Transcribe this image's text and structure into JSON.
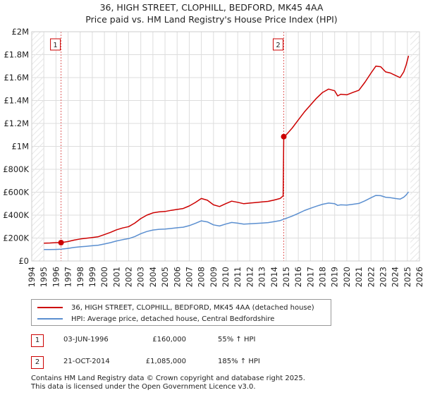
{
  "title_line1": "36, HIGH STREET, CLOPHILL, BEDFORD, MK45 4AA",
  "title_line2": "Price paid vs. HM Land Registry's House Price Index (HPI)",
  "colors": {
    "property": "#cc0000",
    "hpi": "#5b8fd0",
    "vline": "#e06060",
    "grid": "#dddddd"
  },
  "chart_data": {
    "type": "line",
    "x_range": [
      1994,
      2026
    ],
    "y_range": [
      0,
      2000000
    ],
    "y_ticks": [
      {
        "value": 0,
        "label": "£0"
      },
      {
        "value": 200000,
        "label": "£200K"
      },
      {
        "value": 400000,
        "label": "£400K"
      },
      {
        "value": 600000,
        "label": "£600K"
      },
      {
        "value": 800000,
        "label": "£800K"
      },
      {
        "value": 1000000,
        "label": "£1M"
      },
      {
        "value": 1200000,
        "label": "£1.2M"
      },
      {
        "value": 1400000,
        "label": "£1.4M"
      },
      {
        "value": 1600000,
        "label": "£1.6M"
      },
      {
        "value": 1800000,
        "label": "£1.8M"
      },
      {
        "value": 2000000,
        "label": "£2M"
      }
    ],
    "x_ticks": [
      "1994",
      "1995",
      "1996",
      "1997",
      "1998",
      "1999",
      "2000",
      "2001",
      "2002",
      "2003",
      "2004",
      "2005",
      "2006",
      "2007",
      "2008",
      "2009",
      "2010",
      "2011",
      "2012",
      "2013",
      "2014",
      "2015",
      "2016",
      "2017",
      "2018",
      "2019",
      "2020",
      "2021",
      "2022",
      "2023",
      "2024",
      "2025",
      "2026"
    ],
    "series": [
      {
        "name": "property",
        "points": [
          [
            1995.0,
            155000
          ],
          [
            1995.5,
            157000
          ],
          [
            1996.0,
            160000
          ],
          [
            1996.42,
            160000
          ],
          [
            1997.0,
            170000
          ],
          [
            1997.5,
            182000
          ],
          [
            1998.0,
            192000
          ],
          [
            1998.5,
            198000
          ],
          [
            1999.0,
            205000
          ],
          [
            1999.5,
            212000
          ],
          [
            2000.0,
            230000
          ],
          [
            2000.5,
            250000
          ],
          [
            2001.0,
            272000
          ],
          [
            2001.5,
            288000
          ],
          [
            2002.0,
            300000
          ],
          [
            2002.5,
            330000
          ],
          [
            2003.0,
            370000
          ],
          [
            2003.5,
            400000
          ],
          [
            2004.0,
            420000
          ],
          [
            2004.5,
            428000
          ],
          [
            2005.0,
            432000
          ],
          [
            2005.5,
            442000
          ],
          [
            2006.0,
            450000
          ],
          [
            2006.5,
            458000
          ],
          [
            2007.0,
            480000
          ],
          [
            2007.5,
            510000
          ],
          [
            2008.0,
            545000
          ],
          [
            2008.5,
            530000
          ],
          [
            2009.0,
            490000
          ],
          [
            2009.5,
            475000
          ],
          [
            2010.0,
            500000
          ],
          [
            2010.5,
            522000
          ],
          [
            2011.0,
            512000
          ],
          [
            2011.5,
            500000
          ],
          [
            2012.0,
            505000
          ],
          [
            2012.5,
            510000
          ],
          [
            2013.0,
            515000
          ],
          [
            2013.5,
            520000
          ],
          [
            2014.0,
            532000
          ],
          [
            2014.5,
            545000
          ],
          [
            2014.75,
            568000
          ],
          [
            2014.8,
            1085000
          ],
          [
            2015.0,
            1100000
          ],
          [
            2015.5,
            1160000
          ],
          [
            2016.0,
            1230000
          ],
          [
            2016.5,
            1300000
          ],
          [
            2017.0,
            1360000
          ],
          [
            2017.5,
            1420000
          ],
          [
            2018.0,
            1470000
          ],
          [
            2018.5,
            1500000
          ],
          [
            2019.0,
            1485000
          ],
          [
            2019.25,
            1440000
          ],
          [
            2019.5,
            1455000
          ],
          [
            2020.0,
            1450000
          ],
          [
            2020.5,
            1470000
          ],
          [
            2021.0,
            1490000
          ],
          [
            2021.5,
            1560000
          ],
          [
            2022.0,
            1640000
          ],
          [
            2022.4,
            1700000
          ],
          [
            2022.8,
            1695000
          ],
          [
            2023.2,
            1650000
          ],
          [
            2023.6,
            1640000
          ],
          [
            2024.0,
            1620000
          ],
          [
            2024.4,
            1600000
          ],
          [
            2024.7,
            1650000
          ],
          [
            2024.9,
            1710000
          ],
          [
            2025.1,
            1790000
          ]
        ]
      },
      {
        "name": "hpi",
        "points": [
          [
            1995.0,
            100000
          ],
          [
            1995.5,
            100000
          ],
          [
            1996.0,
            101000
          ],
          [
            1996.42,
            103000
          ],
          [
            1997.0,
            110000
          ],
          [
            1997.5,
            118000
          ],
          [
            1998.0,
            124000
          ],
          [
            1998.5,
            128000
          ],
          [
            1999.0,
            133000
          ],
          [
            1999.5,
            138000
          ],
          [
            2000.0,
            148000
          ],
          [
            2000.5,
            160000
          ],
          [
            2001.0,
            175000
          ],
          [
            2001.5,
            186000
          ],
          [
            2002.0,
            195000
          ],
          [
            2002.5,
            213000
          ],
          [
            2003.0,
            238000
          ],
          [
            2003.5,
            257000
          ],
          [
            2004.0,
            270000
          ],
          [
            2004.5,
            276000
          ],
          [
            2005.0,
            278000
          ],
          [
            2005.5,
            284000
          ],
          [
            2006.0,
            290000
          ],
          [
            2006.5,
            295000
          ],
          [
            2007.0,
            308000
          ],
          [
            2007.5,
            328000
          ],
          [
            2008.0,
            350000
          ],
          [
            2008.5,
            341000
          ],
          [
            2009.0,
            315000
          ],
          [
            2009.5,
            305000
          ],
          [
            2010.0,
            322000
          ],
          [
            2010.5,
            336000
          ],
          [
            2011.0,
            330000
          ],
          [
            2011.5,
            322000
          ],
          [
            2012.0,
            325000
          ],
          [
            2012.5,
            328000
          ],
          [
            2013.0,
            331000
          ],
          [
            2013.5,
            335000
          ],
          [
            2014.0,
            343000
          ],
          [
            2014.5,
            352000
          ],
          [
            2014.8,
            365000
          ],
          [
            2015.0,
            372000
          ],
          [
            2015.5,
            392000
          ],
          [
            2016.0,
            415000
          ],
          [
            2016.5,
            440000
          ],
          [
            2017.0,
            460000
          ],
          [
            2017.5,
            478000
          ],
          [
            2018.0,
            495000
          ],
          [
            2018.5,
            505000
          ],
          [
            2019.0,
            500000
          ],
          [
            2019.25,
            485000
          ],
          [
            2019.5,
            490000
          ],
          [
            2020.0,
            488000
          ],
          [
            2020.5,
            495000
          ],
          [
            2021.0,
            502000
          ],
          [
            2021.5,
            525000
          ],
          [
            2022.0,
            552000
          ],
          [
            2022.4,
            572000
          ],
          [
            2022.8,
            570000
          ],
          [
            2023.2,
            556000
          ],
          [
            2023.6,
            552000
          ],
          [
            2024.0,
            545000
          ],
          [
            2024.4,
            540000
          ],
          [
            2024.7,
            556000
          ],
          [
            2024.9,
            576000
          ],
          [
            2025.1,
            603000
          ]
        ]
      }
    ],
    "sales": [
      {
        "label": "1",
        "x": 1996.42,
        "value": 160000
      },
      {
        "label": "2",
        "x": 2014.8,
        "value": 1085000
      }
    ]
  },
  "legend": {
    "property": "36, HIGH STREET, CLOPHILL, BEDFORD, MK45 4AA (detached house)",
    "hpi": "HPI: Average price, detached house, Central Bedfordshire"
  },
  "transactions": [
    {
      "num": "1",
      "date": "03-JUN-1996",
      "price": "£160,000",
      "hpi": "55% ↑ HPI"
    },
    {
      "num": "2",
      "date": "21-OCT-2014",
      "price": "£1,085,000",
      "hpi": "185% ↑ HPI"
    }
  ],
  "footer": {
    "line1": "Contains HM Land Registry data © Crown copyright and database right 2025.",
    "line2": "This data is licensed under the Open Government Licence v3.0."
  }
}
